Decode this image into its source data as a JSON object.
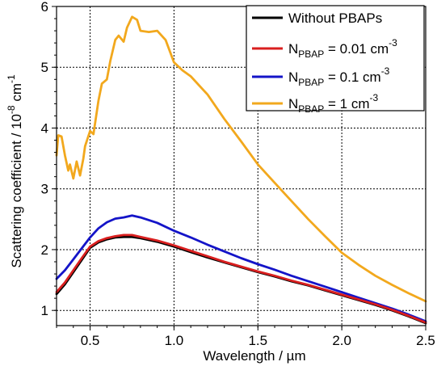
{
  "chart_data": {
    "type": "line",
    "xlabel": "Wavelength / µm",
    "ylabel_main": "Scattering coefficient / 10",
    "ylabel_exp": "-8",
    "ylabel_unit": " cm",
    "ylabel_unit_exp": "-1",
    "xlim": [
      0.3,
      2.5
    ],
    "ylim": [
      0.75,
      6.0
    ],
    "xticks": [
      0.5,
      1.0,
      1.5,
      2.0,
      2.5
    ],
    "xtick_labels": [
      "0.5",
      "1.0",
      "1.5",
      "2.0",
      "2.5"
    ],
    "yticks": [
      1,
      2,
      3,
      4,
      5,
      6
    ],
    "ytick_labels": [
      "1",
      "2",
      "3",
      "4",
      "5",
      "6"
    ],
    "grid": true,
    "legend_position": "top-right",
    "legend": [
      {
        "main": "Without PBAPs",
        "sub": "",
        "mid": "",
        "sup": ""
      },
      {
        "main": "N",
        "sub": "PBAP",
        "mid": " = 0.01 cm",
        "sup": "-3"
      },
      {
        "main": "N",
        "sub": "PBAP",
        "mid": " = 0.1 cm",
        "sup": "-3"
      },
      {
        "main": "N",
        "sub": "PBAP",
        "mid": " = 1 cm",
        "sup": "-3"
      }
    ],
    "series": [
      {
        "color": "#000000",
        "x": [
          0.3,
          0.35,
          0.4,
          0.45,
          0.5,
          0.55,
          0.6,
          0.65,
          0.7,
          0.75,
          0.8,
          0.9,
          1.0,
          1.1,
          1.2,
          1.3,
          1.4,
          1.5,
          1.6,
          1.7,
          1.8,
          1.9,
          2.0,
          2.1,
          2.2,
          2.3,
          2.4,
          2.5
        ],
        "y": [
          1.27,
          1.43,
          1.63,
          1.83,
          2.03,
          2.12,
          2.17,
          2.2,
          2.21,
          2.21,
          2.19,
          2.13,
          2.05,
          1.96,
          1.87,
          1.79,
          1.71,
          1.63,
          1.56,
          1.48,
          1.41,
          1.33,
          1.25,
          1.17,
          1.09,
          1.0,
          0.9,
          0.79
        ]
      },
      {
        "color": "#d91f1f",
        "x": [
          0.3,
          0.35,
          0.4,
          0.45,
          0.5,
          0.55,
          0.6,
          0.65,
          0.7,
          0.75,
          0.8,
          0.9,
          1.0,
          1.1,
          1.2,
          1.3,
          1.4,
          1.5,
          1.6,
          1.7,
          1.8,
          1.9,
          2.0,
          2.1,
          2.2,
          2.3,
          2.4,
          2.5
        ],
        "y": [
          1.3,
          1.46,
          1.66,
          1.86,
          2.05,
          2.14,
          2.19,
          2.22,
          2.24,
          2.24,
          2.21,
          2.15,
          2.07,
          1.98,
          1.89,
          1.8,
          1.72,
          1.64,
          1.57,
          1.49,
          1.42,
          1.34,
          1.26,
          1.18,
          1.1,
          1.01,
          0.91,
          0.8
        ]
      },
      {
        "color": "#1414c8",
        "x": [
          0.3,
          0.35,
          0.4,
          0.45,
          0.5,
          0.55,
          0.6,
          0.65,
          0.7,
          0.75,
          0.8,
          0.9,
          1.0,
          1.1,
          1.2,
          1.3,
          1.4,
          1.5,
          1.6,
          1.7,
          1.8,
          1.9,
          2.0,
          2.1,
          2.2,
          2.3,
          2.4,
          2.5
        ],
        "y": [
          1.52,
          1.66,
          1.84,
          2.02,
          2.2,
          2.35,
          2.45,
          2.51,
          2.53,
          2.56,
          2.53,
          2.44,
          2.31,
          2.2,
          2.08,
          1.97,
          1.86,
          1.76,
          1.67,
          1.57,
          1.48,
          1.39,
          1.3,
          1.21,
          1.12,
          1.03,
          0.93,
          0.82
        ]
      },
      {
        "color": "#f2a81d",
        "x": [
          0.3,
          0.31,
          0.33,
          0.35,
          0.37,
          0.38,
          0.4,
          0.42,
          0.44,
          0.46,
          0.47,
          0.5,
          0.52,
          0.55,
          0.57,
          0.6,
          0.62,
          0.65,
          0.67,
          0.7,
          0.72,
          0.75,
          0.78,
          0.8,
          0.85,
          0.9,
          0.95,
          1.0,
          1.05,
          1.1,
          1.2,
          1.3,
          1.4,
          1.5,
          1.6,
          1.7,
          1.8,
          1.9,
          2.0,
          2.1,
          2.2,
          2.3,
          2.4,
          2.5
        ],
        "y": [
          3.55,
          3.88,
          3.86,
          3.55,
          3.3,
          3.4,
          3.17,
          3.45,
          3.22,
          3.5,
          3.7,
          3.95,
          3.9,
          4.45,
          4.73,
          4.8,
          5.1,
          5.45,
          5.52,
          5.42,
          5.65,
          5.83,
          5.78,
          5.6,
          5.58,
          5.6,
          5.45,
          5.08,
          4.95,
          4.85,
          4.55,
          4.15,
          3.78,
          3.4,
          3.1,
          2.8,
          2.5,
          2.22,
          1.95,
          1.75,
          1.57,
          1.42,
          1.28,
          1.15
        ]
      }
    ]
  }
}
